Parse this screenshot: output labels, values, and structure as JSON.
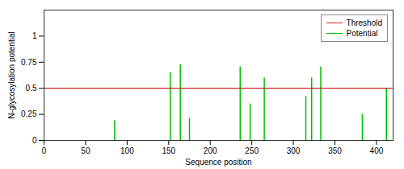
{
  "chart_data": {
    "type": "bar",
    "xlabel": "Sequence position",
    "ylabel": "N-glycosylation potential",
    "x": [
      85,
      152,
      164,
      175,
      236,
      248,
      265,
      315,
      322,
      333,
      383,
      412
    ],
    "series": [
      {
        "name": "Potential",
        "color": "#00bb00",
        "values": [
          0.19,
          0.65,
          0.725,
          0.21,
          0.7037,
          0.35,
          0.6,
          0.42,
          0.6,
          0.7048,
          0.25,
          0.5
        ]
      }
    ],
    "threshold": {
      "name": "Threshold",
      "color": "#cc2222",
      "value": 0.5
    },
    "xlim": [
      0,
      420
    ],
    "ylim": [
      0,
      1.25
    ],
    "xticks": [
      0,
      50,
      100,
      150,
      200,
      250,
      300,
      350,
      400
    ],
    "yticks": [
      0,
      0.25,
      0.5,
      0.75,
      1
    ],
    "legend": "upper right",
    "grid": false
  }
}
